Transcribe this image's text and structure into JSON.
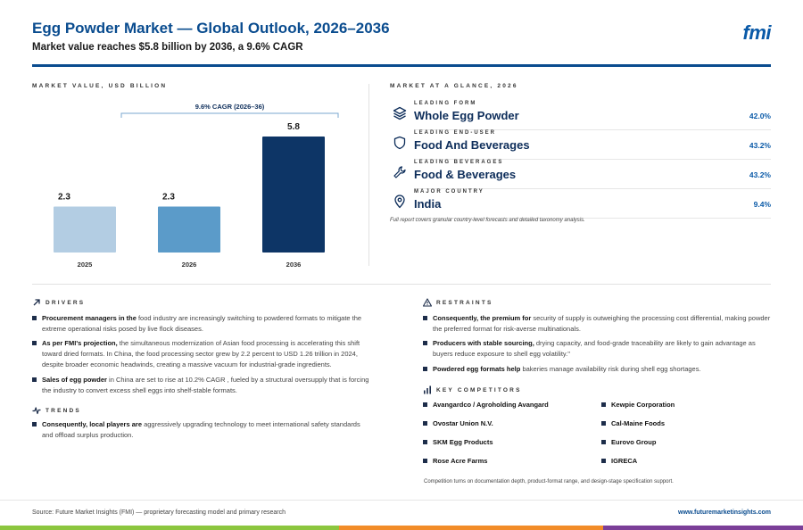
{
  "header": {
    "title": "Egg Powder Market — Global Outlook, 2026–2036",
    "subtitle": "Market value reaches $5.8 billion by 2036, a 9.6% CAGR",
    "logo": "fmi",
    "brand_color": "#0a4c8f"
  },
  "chart_section": {
    "label": "MARKET VALUE, USD BILLION"
  },
  "chart_data": {
    "type": "bar",
    "categories": [
      "2025",
      "2026",
      "2036"
    ],
    "values": [
      2.3,
      2.3,
      5.8
    ],
    "value_labels": [
      "2.3",
      "2.3",
      "5.8"
    ],
    "colors": [
      "#b3cde3",
      "#5b9bc9",
      "#0d3566"
    ],
    "annotation": "9.6% CAGR (2026–36)",
    "annotation_span": [
      "2026",
      "2036"
    ],
    "ylim": [
      0,
      5.8
    ],
    "grid": false,
    "legend": "none"
  },
  "glance": {
    "label": "MARKET AT A GLANCE, 2026",
    "items": [
      {
        "caption": "LEADING FORM",
        "value": "Whole Egg Powder",
        "pct": "42.0%",
        "icon": "layers-icon"
      },
      {
        "caption": "LEADING END-USER",
        "value": "Food And Beverages",
        "pct": "43.2%",
        "icon": "shield-icon"
      },
      {
        "caption": "LEADING BEVERAGES",
        "value": "Food & Beverages",
        "pct": "43.2%",
        "icon": "wrench-icon"
      },
      {
        "caption": "MAJOR COUNTRY",
        "value": "India",
        "pct": "9.4%",
        "icon": "map-pin-icon"
      }
    ],
    "note": "Full report covers granular country-level forecasts and detailed taxonomy analysis."
  },
  "drivers": {
    "label": "DRIVERS",
    "items": [
      {
        "bold": "Procurement managers in the",
        "text": " food industry are increasingly switching to powdered formats to mitigate the extreme operational risks posed by live flock diseases."
      },
      {
        "bold": "As per FMI's projection,",
        "text": " the simultaneous modernization of Asian food processing is accelerating this shift toward dried formats. In China, the food processing sector grew by 2.2 percent to USD 1.26 trillion in 2024, despite broader economic headwinds, creating a massive vacuum for industrial-grade ingredients."
      },
      {
        "bold": "Sales of egg powder",
        "text": " in China are set to rise at 10.2% CAGR , fueled by a structural oversupply that is forcing the industry to convert excess shell eggs into shelf-stable formats."
      }
    ]
  },
  "trends": {
    "label": "TRENDS",
    "items": [
      {
        "bold": "Consequently, local players are",
        "text": " aggressively upgrading technology to meet international safety standards and offload surplus production."
      }
    ]
  },
  "restraints": {
    "label": "RESTRAINTS",
    "items": [
      {
        "bold": "Consequently, the premium for",
        "text": " security of supply is outweighing the processing cost differential, making powder the preferred format for risk-averse multinationals."
      },
      {
        "bold": "Producers with stable sourcing,",
        "text": " drying capacity, and food-grade traceability are likely to gain advantage as buyers reduce exposure to shell egg volatility.\""
      },
      {
        "bold": "Powdered egg formats help",
        "text": " bakeries manage availability risk during shell egg shortages."
      }
    ]
  },
  "competitors": {
    "label": "KEY COMPETITORS",
    "items": [
      "Avangardco / Agroholding Avangard",
      "Kewpie Corporation",
      "Ovostar Union N.V.",
      "Cal-Maine Foods",
      "SKM Egg Products",
      "Eurovo Group",
      "Rose Acre Farms",
      "IGRECA"
    ],
    "note": "Competition turns on documentation depth, product-format range, and design-stage specification support."
  },
  "footer": {
    "source": "Source: Future Market Insights (FMI) — proprietary forecasting model and primary research",
    "url": "www.futuremarketinsights.com",
    "stripe_colors": [
      "#8cc63f",
      "#f28c28",
      "#7b3f98"
    ]
  }
}
